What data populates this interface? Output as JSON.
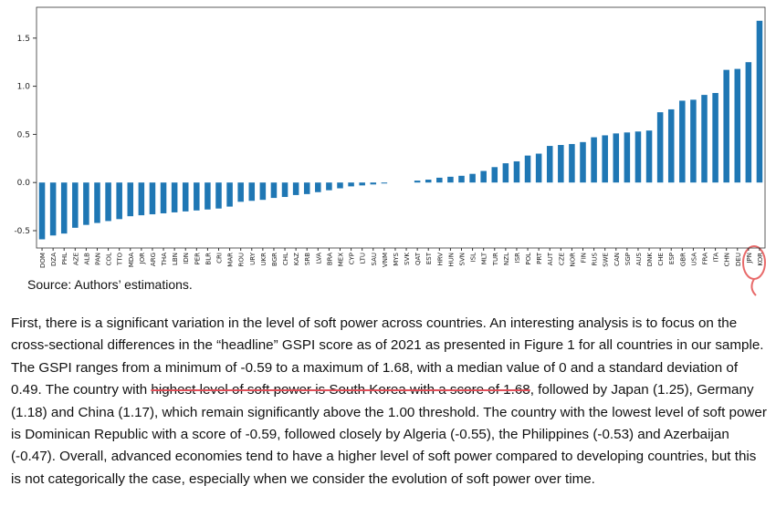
{
  "chart_data": {
    "type": "bar",
    "categories": [
      "DOM",
      "DZA",
      "PHL",
      "AZE",
      "ALB",
      "PAN",
      "COL",
      "TTO",
      "MDA",
      "JOR",
      "ARG",
      "THA",
      "LBN",
      "IDN",
      "PER",
      "BLR",
      "CRI",
      "MAR",
      "ROU",
      "URY",
      "UKR",
      "BGR",
      "CHL",
      "KAZ",
      "SRB",
      "LVA",
      "BRA",
      "MEX",
      "CYP",
      "LTU",
      "SAU",
      "VNM",
      "MYS",
      "SVK",
      "QAT",
      "EST",
      "HRV",
      "HUN",
      "SVN",
      "ISL",
      "MLT",
      "TUR",
      "NZL",
      "ISR",
      "POL",
      "PRT",
      "AUT",
      "CZE",
      "NOR",
      "FIN",
      "RUS",
      "SWE",
      "CAN",
      "SGP",
      "AUS",
      "DNK",
      "CHE",
      "ESP",
      "GBR",
      "USA",
      "FRA",
      "ITA",
      "CHN",
      "DEU",
      "JPN",
      "KOR"
    ],
    "values": [
      -0.59,
      -0.55,
      -0.53,
      -0.47,
      -0.44,
      -0.42,
      -0.4,
      -0.38,
      -0.35,
      -0.34,
      -0.33,
      -0.32,
      -0.31,
      -0.3,
      -0.29,
      -0.28,
      -0.27,
      -0.25,
      -0.2,
      -0.19,
      -0.18,
      -0.16,
      -0.15,
      -0.13,
      -0.12,
      -0.1,
      -0.08,
      -0.06,
      -0.04,
      -0.03,
      -0.02,
      -0.01,
      0.0,
      0.0,
      0.02,
      0.03,
      0.05,
      0.06,
      0.07,
      0.09,
      0.12,
      0.16,
      0.2,
      0.22,
      0.28,
      0.3,
      0.38,
      0.39,
      0.4,
      0.42,
      0.47,
      0.49,
      0.51,
      0.52,
      0.53,
      0.54,
      0.73,
      0.76,
      0.85,
      0.86,
      0.91,
      0.93,
      1.17,
      1.18,
      1.25,
      1.68
    ],
    "color": "#1f77b4",
    "ylim": [
      -0.68,
      1.82
    ],
    "yticks": [
      -0.5,
      {
        "value": 0,
        "label": "0.0"
      },
      0.5,
      {
        "value": 1,
        "label": "1.0"
      },
      1.5
    ]
  },
  "source": "Source: Authors’ estimations.",
  "paragraph": {
    "before": "First, there is a significant variation in the level of soft power across countries. An interesting analysis is to focus on the cross-sectional differences in the “headline” GSPI score as of 2021 as presented in Figure 1 for all countries in our sample. The GSPI ranges from a minimum of -0.59 to a maximum of 1.68, with a median value of 0 and a standard deviation of 0.49. The country with ",
    "highlighted": "highest level of soft power is South Korea with a score of 1.68",
    "after": ", followed by Japan (1.25), Germany (1.18) and China (1.17), which remain significantly above the 1.00 threshold. The country with the lowest level of soft power is Dominican Republic with a score of -0.59, followed closely by Algeria (-0.55), the Philippines (-0.53) and Azerbaijan (-0.47). Overall, advanced economies tend to have a higher level of soft power compared to developing countries, but this is not categorically the case, especially when we consider the evolution of soft power over time."
  }
}
